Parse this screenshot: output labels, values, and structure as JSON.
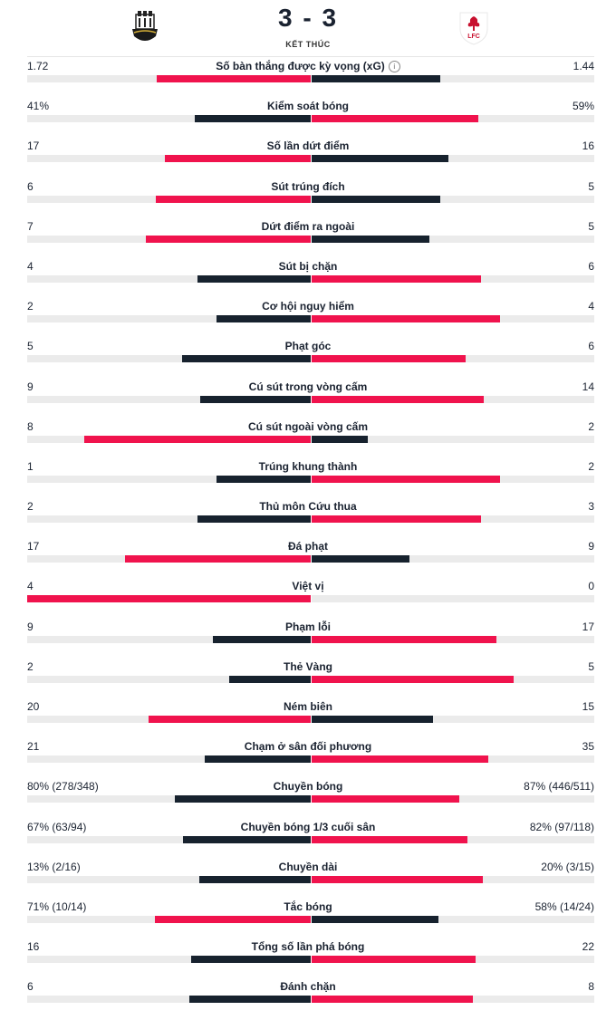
{
  "match": {
    "score": "3 - 3",
    "status": "KẾT THÚC",
    "home_crest": "newcastle-crest",
    "away_crest": "liverpool-crest",
    "away_crest_text": "LFC"
  },
  "colors": {
    "leader": "#f0134d",
    "other": "#17222e",
    "track": "#ebebeb"
  },
  "stats": [
    {
      "label": "Số bàn thắng được kỳ vọng (xG)",
      "home": "1.72",
      "away": "1.44",
      "home_share": 0.544,
      "away_share": 0.456,
      "info": true
    },
    {
      "label": "Kiểm soát bóng",
      "home": "41%",
      "away": "59%",
      "home_share": 0.41,
      "away_share": 0.59
    },
    {
      "label": "Số lần dứt điểm",
      "home": "17",
      "away": "16",
      "home_share": 0.515,
      "away_share": 0.485
    },
    {
      "label": "Sút trúng đích",
      "home": "6",
      "away": "5",
      "home_share": 0.545,
      "away_share": 0.455
    },
    {
      "label": "Dứt điểm ra ngoài",
      "home": "7",
      "away": "5",
      "home_share": 0.583,
      "away_share": 0.417
    },
    {
      "label": "Sút bị chặn",
      "home": "4",
      "away": "6",
      "home_share": 0.4,
      "away_share": 0.6
    },
    {
      "label": "Cơ hội nguy hiểm",
      "home": "2",
      "away": "4",
      "home_share": 0.333,
      "away_share": 0.667
    },
    {
      "label": "Phạt góc",
      "home": "5",
      "away": "6",
      "home_share": 0.455,
      "away_share": 0.545
    },
    {
      "label": "Cú sút trong vòng cấm",
      "home": "9",
      "away": "14",
      "home_share": 0.391,
      "away_share": 0.609
    },
    {
      "label": "Cú sút ngoài vòng cấm",
      "home": "8",
      "away": "2",
      "home_share": 0.8,
      "away_share": 0.2
    },
    {
      "label": "Trúng khung thành",
      "home": "1",
      "away": "2",
      "home_share": 0.333,
      "away_share": 0.667
    },
    {
      "label": "Thủ môn Cứu thua",
      "home": "2",
      "away": "3",
      "home_share": 0.4,
      "away_share": 0.6
    },
    {
      "label": "Đá phạt",
      "home": "17",
      "away": "9",
      "home_share": 0.654,
      "away_share": 0.346
    },
    {
      "label": "Việt vị",
      "home": "4",
      "away": "0",
      "home_share": 1.0,
      "away_share": 0.0
    },
    {
      "label": "Phạm lỗi",
      "home": "9",
      "away": "17",
      "home_share": 0.346,
      "away_share": 0.654
    },
    {
      "label": "Thẻ Vàng",
      "home": "2",
      "away": "5",
      "home_share": 0.286,
      "away_share": 0.714
    },
    {
      "label": "Ném biên",
      "home": "20",
      "away": "15",
      "home_share": 0.571,
      "away_share": 0.429
    },
    {
      "label": "Chạm ở sân đối phương",
      "home": "21",
      "away": "35",
      "home_share": 0.375,
      "away_share": 0.625
    },
    {
      "label": "Chuyền bóng",
      "home": "80% (278/348)",
      "away": "87% (446/511)",
      "home_share": 0.479,
      "away_share": 0.521
    },
    {
      "label": "Chuyền bóng 1/3 cuối sân",
      "home": "67% (63/94)",
      "away": "82% (97/118)",
      "home_share": 0.45,
      "away_share": 0.55
    },
    {
      "label": "Chuyền dài",
      "home": "13% (2/16)",
      "away": "20% (3/15)",
      "home_share": 0.394,
      "away_share": 0.606
    },
    {
      "label": "Tắc bóng",
      "home": "71% (10/14)",
      "away": "58% (14/24)",
      "home_share": 0.55,
      "away_share": 0.45
    },
    {
      "label": "Tổng số lần phá bóng",
      "home": "16",
      "away": "22",
      "home_share": 0.421,
      "away_share": 0.579
    },
    {
      "label": "Đánh chặn",
      "home": "6",
      "away": "8",
      "home_share": 0.429,
      "away_share": 0.571
    }
  ]
}
